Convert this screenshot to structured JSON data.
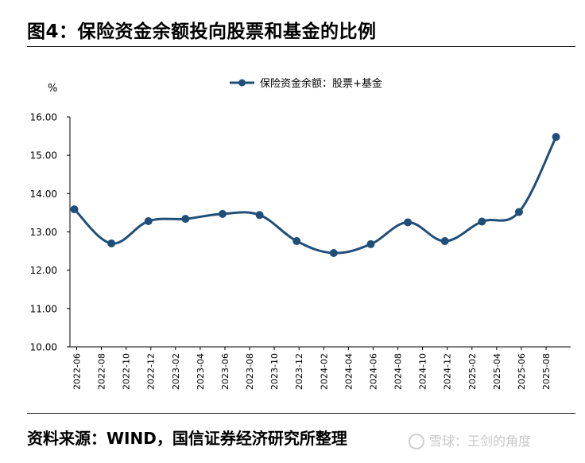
{
  "figure": {
    "title": "图4：保险资金余额投向股票和基金的比例",
    "source": "资料来源：WIND，国信证券经济研究所整理",
    "watermark": "雪球：王剑的角度"
  },
  "chart_data": {
    "type": "line",
    "title": "",
    "ylabel": "%",
    "xlabel": "",
    "ylim": [
      10,
      16
    ],
    "ytick_step": 1,
    "grid": false,
    "legend_position": "top-center",
    "line_color": "#1f4e79",
    "x_tick_labels": [
      "2022-06",
      "2022-08",
      "2022-10",
      "2022-12",
      "2023-02",
      "2023-04",
      "2023-06",
      "2023-08",
      "2023-10",
      "2023-12",
      "2024-02",
      "2024-04",
      "2024-06",
      "2024-08",
      "2024-10",
      "2024-12",
      "2025-02",
      "2025-04",
      "2025-06",
      "2025-08"
    ],
    "y_tick_labels": [
      "10.00",
      "11.00",
      "12.00",
      "13.00",
      "14.00",
      "15.00",
      "16.00"
    ],
    "series": [
      {
        "name": "保险资金余额：股票+基金",
        "points": [
          {
            "x": "2022-06",
            "y": 13.59
          },
          {
            "x": "2022-09",
            "y": 12.7
          },
          {
            "x": "2022-12",
            "y": 13.28
          },
          {
            "x": "2023-03",
            "y": 13.34
          },
          {
            "x": "2023-06",
            "y": 13.47
          },
          {
            "x": "2023-09",
            "y": 13.44
          },
          {
            "x": "2023-12",
            "y": 12.76
          },
          {
            "x": "2024-03",
            "y": 12.45
          },
          {
            "x": "2024-06",
            "y": 12.68
          },
          {
            "x": "2024-09",
            "y": 13.25
          },
          {
            "x": "2024-12",
            "y": 12.76
          },
          {
            "x": "2025-03",
            "y": 13.27
          },
          {
            "x": "2025-06",
            "y": 13.52
          },
          {
            "x": "2025-09",
            "y": 15.48
          }
        ]
      }
    ]
  }
}
